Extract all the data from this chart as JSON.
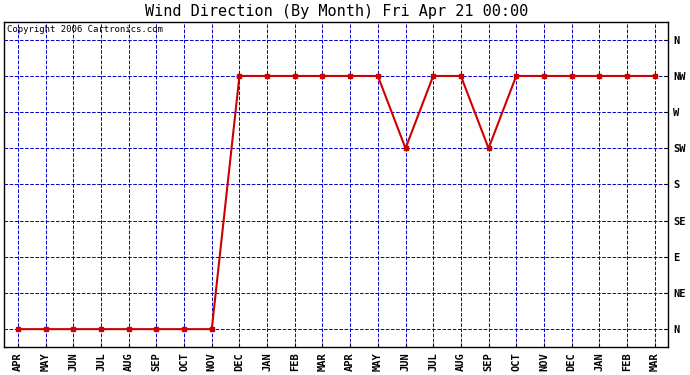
{
  "title": "Wind Direction (By Month) Fri Apr 21 00:00",
  "copyright_text": "Copyright 2006 Cartronics.com",
  "x_labels": [
    "APR",
    "MAY",
    "JUN",
    "JUL",
    "AUG",
    "SEP",
    "OCT",
    "NOV",
    "DEC",
    "JAN",
    "FEB",
    "MAR",
    "APR",
    "MAY",
    "JUN",
    "JUL",
    "AUG",
    "SEP",
    "OCT",
    "NOV",
    "DEC",
    "JAN",
    "FEB",
    "MAR"
  ],
  "y_labels": [
    "N",
    "NE",
    "E",
    "SE",
    "S",
    "SW",
    "W",
    "NW",
    "N"
  ],
  "direction_values": [
    0,
    0,
    0,
    0,
    0,
    0,
    0,
    0,
    7,
    7,
    7,
    7,
    7,
    7,
    5,
    7,
    7,
    5,
    7,
    7,
    7,
    7,
    7,
    7
  ],
  "line_color": "#cc0000",
  "marker_color": "#cc0000",
  "grid_color": "#0000cc",
  "background_color": "#ffffff",
  "plot_bg_color": "#ffffff",
  "title_fontsize": 11,
  "tick_fontsize": 7.5,
  "copyright_fontsize": 6.5
}
